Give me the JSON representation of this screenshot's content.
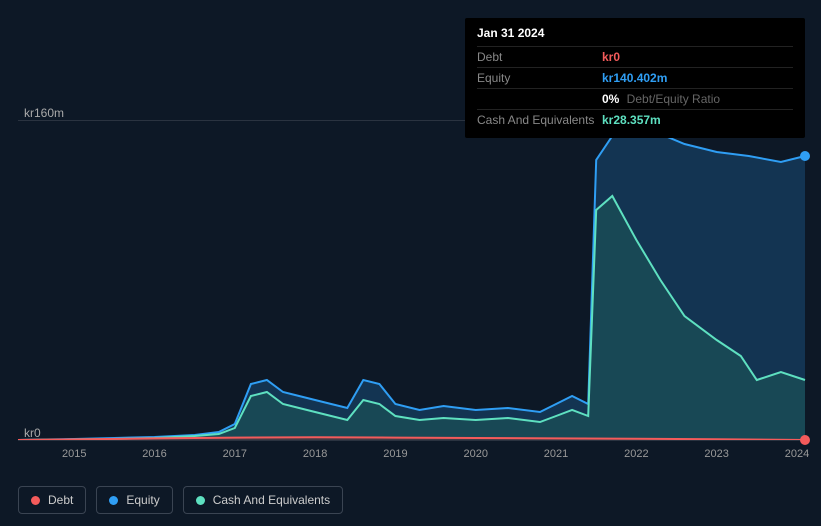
{
  "tooltip": {
    "date": "Jan 31 2024",
    "rows": [
      {
        "label": "Debt",
        "value": "kr0",
        "color": "#f45b5b",
        "subtext": ""
      },
      {
        "label": "Equity",
        "value": "kr140.402m",
        "color": "#2f9ef4",
        "subtext": ""
      },
      {
        "label": "",
        "value": "0%",
        "color": "#ffffff",
        "subtext": "Debt/Equity Ratio"
      },
      {
        "label": "Cash And Equivalents",
        "value": "kr28.357m",
        "color": "#5ee0c0",
        "subtext": ""
      }
    ]
  },
  "chart": {
    "type": "area",
    "background_color": "#0d1826",
    "grid_color": "#2a3340",
    "ylim": [
      0,
      160
    ],
    "y_ticks": [
      {
        "v": 160,
        "label": "kr160m"
      },
      {
        "v": 0,
        "label": "kr0"
      }
    ],
    "x_years": [
      2015,
      2016,
      2017,
      2018,
      2019,
      2020,
      2021,
      2022,
      2023,
      2024
    ],
    "x_range": [
      2014.3,
      2024.1
    ],
    "series": [
      {
        "name": "Equity",
        "color": "#2f9ef4",
        "fill": "#17476f",
        "fill_opacity": 0.6,
        "line_width": 2,
        "points": [
          [
            2014.3,
            0
          ],
          [
            2015,
            0.5
          ],
          [
            2015.5,
            1
          ],
          [
            2016,
            1.5
          ],
          [
            2016.5,
            2.5
          ],
          [
            2016.8,
            4
          ],
          [
            2017,
            8
          ],
          [
            2017.2,
            28
          ],
          [
            2017.4,
            30
          ],
          [
            2017.6,
            24
          ],
          [
            2017.8,
            22
          ],
          [
            2018,
            20
          ],
          [
            2018.2,
            18
          ],
          [
            2018.4,
            16
          ],
          [
            2018.6,
            30
          ],
          [
            2018.8,
            28
          ],
          [
            2019,
            18
          ],
          [
            2019.3,
            15
          ],
          [
            2019.6,
            17
          ],
          [
            2020,
            15
          ],
          [
            2020.4,
            16
          ],
          [
            2020.8,
            14
          ],
          [
            2021,
            18
          ],
          [
            2021.2,
            22
          ],
          [
            2021.4,
            18
          ],
          [
            2021.5,
            140
          ],
          [
            2021.7,
            152
          ],
          [
            2022,
            154
          ],
          [
            2022.3,
            153
          ],
          [
            2022.6,
            148
          ],
          [
            2023,
            144
          ],
          [
            2023.4,
            142
          ],
          [
            2023.8,
            139
          ],
          [
            2024.1,
            142
          ]
        ],
        "end_dot": true
      },
      {
        "name": "Cash And Equivalents",
        "color": "#5ee0c0",
        "fill": "#1e5a58",
        "fill_opacity": 0.55,
        "line_width": 2,
        "points": [
          [
            2014.3,
            0
          ],
          [
            2015,
            0.3
          ],
          [
            2015.5,
            0.5
          ],
          [
            2016,
            1
          ],
          [
            2016.5,
            2
          ],
          [
            2016.8,
            3
          ],
          [
            2017,
            6
          ],
          [
            2017.2,
            22
          ],
          [
            2017.4,
            24
          ],
          [
            2017.6,
            18
          ],
          [
            2017.8,
            16
          ],
          [
            2018,
            14
          ],
          [
            2018.2,
            12
          ],
          [
            2018.4,
            10
          ],
          [
            2018.6,
            20
          ],
          [
            2018.8,
            18
          ],
          [
            2019,
            12
          ],
          [
            2019.3,
            10
          ],
          [
            2019.6,
            11
          ],
          [
            2020,
            10
          ],
          [
            2020.4,
            11
          ],
          [
            2020.8,
            9
          ],
          [
            2021,
            12
          ],
          [
            2021.2,
            15
          ],
          [
            2021.4,
            12
          ],
          [
            2021.5,
            115
          ],
          [
            2021.7,
            122
          ],
          [
            2022,
            100
          ],
          [
            2022.3,
            80
          ],
          [
            2022.6,
            62
          ],
          [
            2023,
            50
          ],
          [
            2023.3,
            42
          ],
          [
            2023.5,
            30
          ],
          [
            2023.8,
            34
          ],
          [
            2024.1,
            30
          ]
        ],
        "end_dot": false
      },
      {
        "name": "Debt",
        "color": "#f45b5b",
        "fill": "#6b2a33",
        "fill_opacity": 0.5,
        "line_width": 2,
        "points": [
          [
            2014.3,
            0
          ],
          [
            2016,
            0.8
          ],
          [
            2017,
            1.2
          ],
          [
            2018,
            1.4
          ],
          [
            2019,
            1.2
          ],
          [
            2020,
            1
          ],
          [
            2021,
            0.8
          ],
          [
            2022,
            0.6
          ],
          [
            2023,
            0.4
          ],
          [
            2024.1,
            0
          ]
        ],
        "end_dot": true
      }
    ],
    "legend": [
      {
        "label": "Debt",
        "color": "#f45b5b"
      },
      {
        "label": "Equity",
        "color": "#2f9ef4"
      },
      {
        "label": "Cash And Equivalents",
        "color": "#5ee0c0"
      }
    ]
  }
}
